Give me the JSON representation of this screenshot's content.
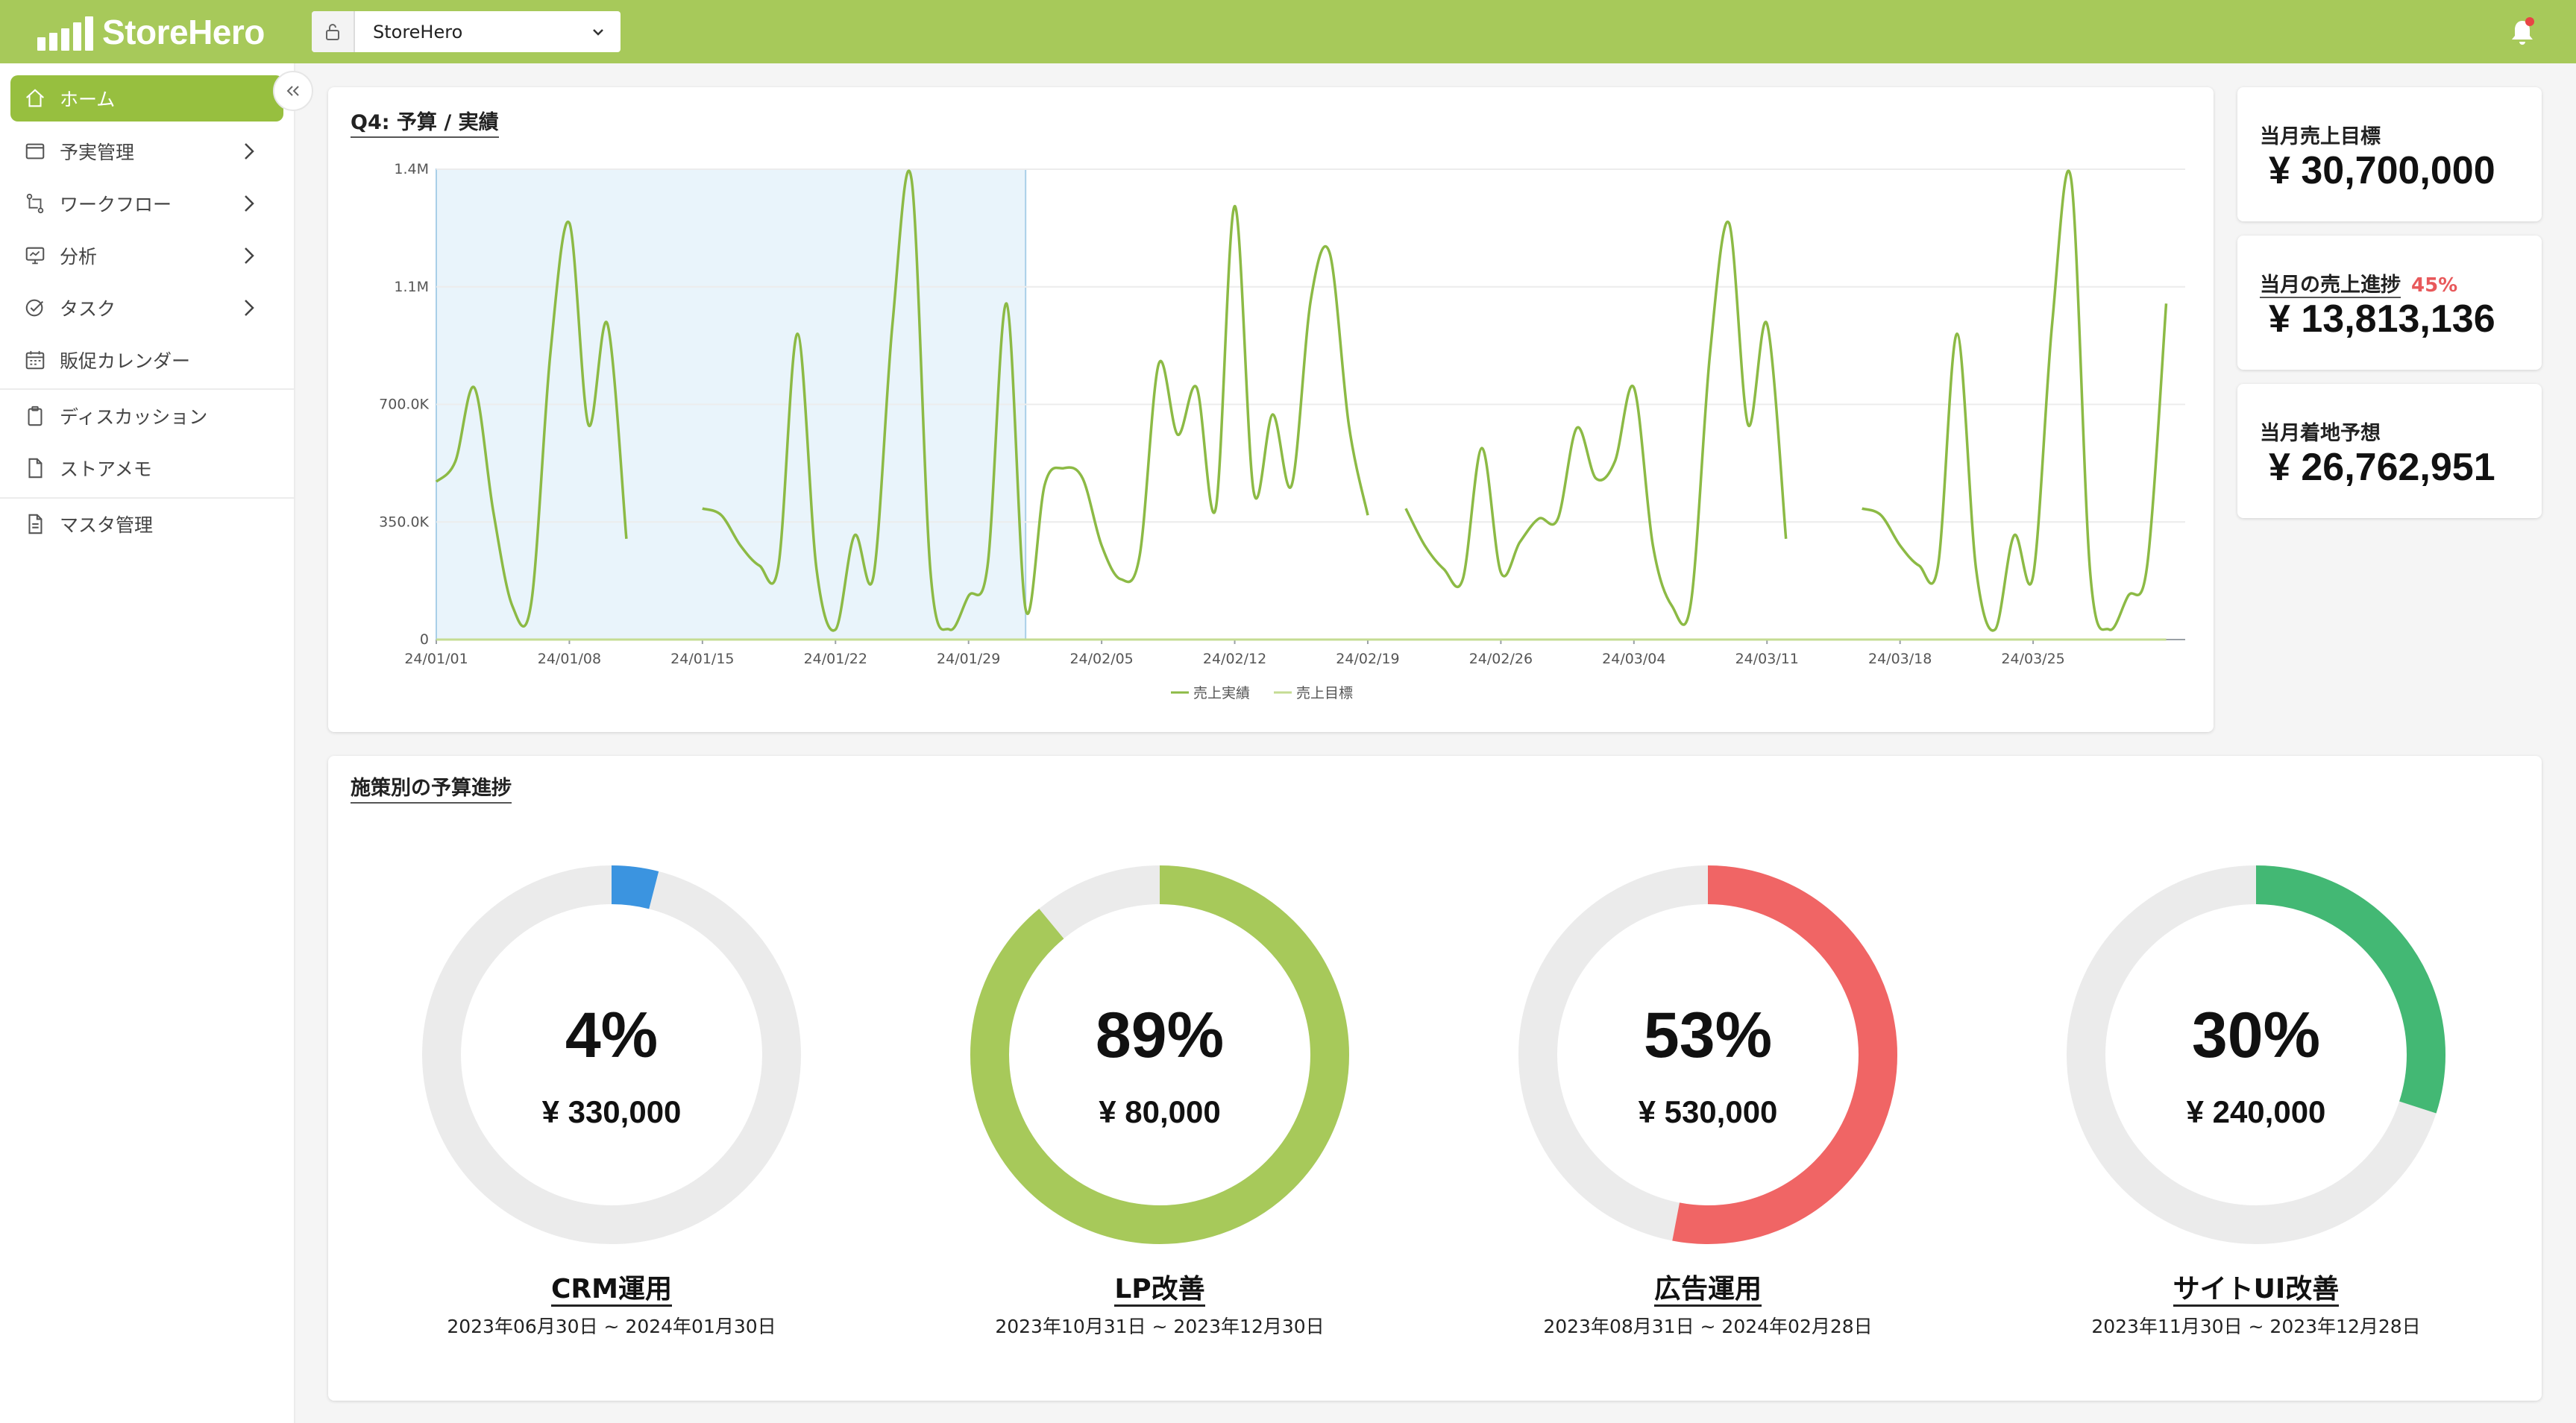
{
  "app": {
    "logo_text": "StoreHero",
    "store_selector_value": "StoreHero",
    "accent_color": "#a7c95a",
    "active_color": "#97bf3f"
  },
  "sidebar": {
    "items": [
      {
        "label": "ホーム",
        "icon": "home-icon",
        "active": true,
        "has_arrow": false
      },
      {
        "label": "予実管理",
        "icon": "window-icon",
        "active": false,
        "has_arrow": true
      },
      {
        "label": "ワークフロー",
        "icon": "workflow-icon",
        "active": false,
        "has_arrow": true
      },
      {
        "label": "分析",
        "icon": "monitor-icon",
        "active": false,
        "has_arrow": true
      },
      {
        "label": "タスク",
        "icon": "task-check-icon",
        "active": false,
        "has_arrow": true
      },
      {
        "label": "販促カレンダー",
        "icon": "calendar-icon",
        "active": false,
        "has_arrow": false
      },
      {
        "label": "ディスカッション",
        "icon": "clipboard-icon",
        "active": false,
        "has_arrow": false
      },
      {
        "label": "ストアメモ",
        "icon": "document-icon",
        "active": false,
        "has_arrow": false
      },
      {
        "label": "マスタ管理",
        "icon": "list-document-icon",
        "active": false,
        "has_arrow": false
      }
    ]
  },
  "chart_card": {
    "title": "Q4: 予算 / 実績"
  },
  "chart_data": {
    "type": "line",
    "title": "Q4: 予算 / 実績",
    "x_tick_labels": [
      "24/01/01",
      "24/01/08",
      "24/01/15",
      "24/01/22",
      "24/01/29",
      "24/02/05",
      "24/02/12",
      "24/02/19",
      "24/02/26",
      "24/03/04",
      "24/03/11",
      "24/03/18",
      "24/03/25"
    ],
    "y_tick_labels": [
      "0",
      "350.0K",
      "700.0K",
      "1.1M",
      "1.4M"
    ],
    "ylim": [
      0,
      1400000
    ],
    "legend": [
      "売上実績",
      "売上目標"
    ],
    "legend_position": "bottom",
    "grid": true,
    "highlight_range": [
      "24/01/01",
      "24/01/31"
    ],
    "series": [
      {
        "name": "売上実績",
        "color": "#8cba45",
        "segments": [
          [
            [
              0,
              470000
            ],
            [
              1,
              530000
            ],
            [
              2,
              750000
            ],
            [
              3,
              380000
            ],
            [
              4,
              100000
            ],
            [
              5,
              110000
            ],
            [
              6,
              850000
            ],
            [
              7,
              1240000
            ],
            [
              8,
              640000
            ],
            [
              9,
              940000
            ],
            [
              10,
              300000
            ]
          ],
          [
            [
              14,
              390000
            ],
            [
              15,
              370000
            ],
            [
              16,
              280000
            ],
            [
              17,
              220000
            ],
            [
              18,
              220000
            ],
            [
              19,
              910000
            ],
            [
              20,
              210000
            ],
            [
              21,
              30000
            ],
            [
              22,
              310000
            ],
            [
              23,
              190000
            ],
            [
              24,
              940000
            ],
            [
              25,
              1370000
            ],
            [
              26,
              200000
            ],
            [
              27,
              30000
            ],
            [
              28,
              130000
            ],
            [
              29,
              220000
            ],
            [
              30,
              1000000
            ],
            [
              31,
              90000
            ],
            [
              32,
              460000
            ],
            [
              33,
              510000
            ],
            [
              34,
              480000
            ],
            [
              35,
              280000
            ],
            [
              36,
              180000
            ],
            [
              37,
              250000
            ],
            [
              38,
              820000
            ],
            [
              39,
              610000
            ],
            [
              40,
              750000
            ],
            [
              41,
              390000
            ],
            [
              42,
              1290000
            ],
            [
              43,
              440000
            ],
            [
              44,
              670000
            ],
            [
              45,
              460000
            ],
            [
              46,
              1010000
            ],
            [
              47,
              1150000
            ],
            [
              48,
              640000
            ],
            [
              49,
              370000
            ]
          ],
          [
            [
              51,
              390000
            ],
            [
              52,
              280000
            ],
            [
              53,
              210000
            ],
            [
              54,
              180000
            ],
            [
              55,
              570000
            ],
            [
              56,
              200000
            ],
            [
              57,
              290000
            ],
            [
              58,
              360000
            ],
            [
              59,
              360000
            ],
            [
              60,
              630000
            ],
            [
              61,
              480000
            ],
            [
              62,
              530000
            ],
            [
              63,
              750000
            ],
            [
              64,
              280000
            ],
            [
              65,
              100000
            ],
            [
              66,
              110000
            ],
            [
              67,
              850000
            ],
            [
              68,
              1240000
            ],
            [
              69,
              640000
            ],
            [
              70,
              940000
            ],
            [
              71,
              300000
            ]
          ],
          [
            [
              75,
              390000
            ],
            [
              76,
              370000
            ],
            [
              77,
              280000
            ],
            [
              78,
              220000
            ],
            [
              79,
              220000
            ],
            [
              80,
              910000
            ],
            [
              81,
              210000
            ],
            [
              82,
              30000
            ],
            [
              83,
              310000
            ],
            [
              84,
              190000
            ],
            [
              85,
              940000
            ],
            [
              86,
              1370000
            ],
            [
              87,
              200000
            ],
            [
              88,
              30000
            ],
            [
              89,
              130000
            ],
            [
              90,
              220000
            ],
            [
              91,
              1000000
            ]
          ]
        ]
      },
      {
        "name": "売上目標",
        "color": "#c5dc93",
        "segments": [
          [
            [
              0,
              0
            ],
            [
              91,
              0
            ]
          ]
        ]
      }
    ]
  },
  "kpis": [
    {
      "label": "当月売上目標",
      "value": "¥ 30,700,000",
      "percent": null
    },
    {
      "label": "当月の売上進捗",
      "value": "¥ 13,813,136",
      "percent": "45%"
    },
    {
      "label": "当月着地予想",
      "value": "¥ 26,762,951",
      "percent": null
    }
  ],
  "budget_card": {
    "title": "施策別の予算進捗",
    "items": [
      {
        "name": "CRM運用",
        "percent_label": "4%",
        "percent": 4,
        "amount": "¥ 330,000",
        "period": "2023年06月30日 ~ 2024年01月30日",
        "color": "#3b94e0"
      },
      {
        "name": "LP改善",
        "percent_label": "89%",
        "percent": 89,
        "amount": "¥ 80,000",
        "period": "2023年10月31日 ~ 2023年12月30日",
        "color": "#a7c95a"
      },
      {
        "name": "広告運用",
        "percent_label": "53%",
        "percent": 53,
        "amount": "¥ 530,000",
        "period": "2023年08月31日 ~ 2024年02月28日",
        "color": "#f06565"
      },
      {
        "name": "サイトUI改善",
        "percent_label": "30%",
        "percent": 30,
        "amount": "¥ 240,000",
        "period": "2023年11月30日 ~ 2023年12月28日",
        "color": "#43b874"
      }
    ]
  }
}
